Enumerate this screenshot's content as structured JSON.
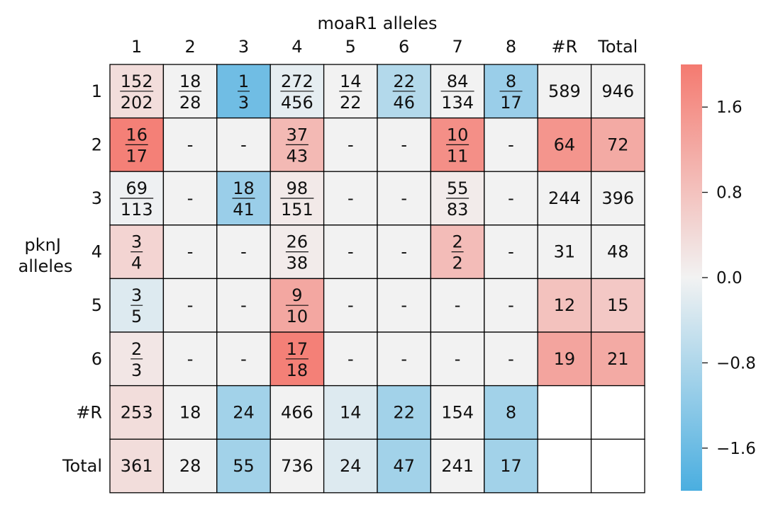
{
  "chart_data": {
    "type": "heatmap",
    "title": "moaR1 alleles",
    "ylabel": [
      "pknJ",
      "alleles"
    ],
    "columns": [
      "1",
      "2",
      "3",
      "4",
      "5",
      "6",
      "7",
      "8",
      "#R",
      "Total"
    ],
    "rows": [
      "1",
      "2",
      "3",
      "4",
      "5",
      "6",
      "#R",
      "Total"
    ],
    "cells": [
      [
        {
          "t": "frac",
          "num": "152",
          "den": "202",
          "v": 0.35
        },
        {
          "t": "frac",
          "num": "18",
          "den": "28",
          "v": 0.0
        },
        {
          "t": "frac",
          "num": "1",
          "den": "3",
          "v": -1.55
        },
        {
          "t": "frac",
          "num": "272",
          "den": "456",
          "v": -0.15
        },
        {
          "t": "frac",
          "num": "14",
          "den": "22",
          "v": 0.0
        },
        {
          "t": "frac",
          "num": "22",
          "den": "46",
          "v": -0.75
        },
        {
          "t": "frac",
          "num": "84",
          "den": "134",
          "v": 0.0
        },
        {
          "t": "frac",
          "num": "8",
          "den": "17",
          "v": -1.05
        },
        {
          "t": "num",
          "text": "589",
          "v": 0.0
        },
        {
          "t": "num",
          "text": "946",
          "v": 0.0
        }
      ],
      [
        {
          "t": "frac",
          "num": "16",
          "den": "17",
          "v": 1.9
        },
        {
          "t": "dash",
          "text": "-",
          "v": 0.0
        },
        {
          "t": "dash",
          "text": "-",
          "v": 0.0
        },
        {
          "t": "frac",
          "num": "37",
          "den": "43",
          "v": 0.95
        },
        {
          "t": "dash",
          "text": "-",
          "v": 0.0
        },
        {
          "t": "dash",
          "text": "-",
          "v": 0.0
        },
        {
          "t": "frac",
          "num": "10",
          "den": "11",
          "v": 1.65
        },
        {
          "t": "dash",
          "text": "-",
          "v": 0.0
        },
        {
          "t": "num",
          "text": "64",
          "v": 1.55
        },
        {
          "t": "num",
          "text": "72",
          "v": 1.2
        }
      ],
      [
        {
          "t": "frac",
          "num": "69",
          "den": "113",
          "v": -0.05
        },
        {
          "t": "dash",
          "text": "-",
          "v": 0.0
        },
        {
          "t": "frac",
          "num": "18",
          "den": "41",
          "v": -1.05
        },
        {
          "t": "frac",
          "num": "98",
          "den": "151",
          "v": 0.15
        },
        {
          "t": "dash",
          "text": "-",
          "v": 0.0
        },
        {
          "t": "dash",
          "text": "-",
          "v": 0.0
        },
        {
          "t": "frac",
          "num": "55",
          "den": "83",
          "v": 0.12
        },
        {
          "t": "dash",
          "text": "-",
          "v": 0.0
        },
        {
          "t": "num",
          "text": "244",
          "v": 0.0
        },
        {
          "t": "num",
          "text": "396",
          "v": 0.0
        }
      ],
      [
        {
          "t": "frac",
          "num": "3",
          "den": "4",
          "v": 0.5
        },
        {
          "t": "dash",
          "text": "-",
          "v": 0.0
        },
        {
          "t": "dash",
          "text": "-",
          "v": 0.0
        },
        {
          "t": "frac",
          "num": "26",
          "den": "38",
          "v": 0.12
        },
        {
          "t": "dash",
          "text": "-",
          "v": 0.0
        },
        {
          "t": "dash",
          "text": "-",
          "v": 0.0
        },
        {
          "t": "frac",
          "num": "2",
          "den": "2",
          "v": 0.9
        },
        {
          "t": "dash",
          "text": "-",
          "v": 0.0
        },
        {
          "t": "num",
          "text": "31",
          "v": 0.0
        },
        {
          "t": "num",
          "text": "48",
          "v": 0.0
        }
      ],
      [
        {
          "t": "frac",
          "num": "3",
          "den": "5",
          "v": -0.25
        },
        {
          "t": "dash",
          "text": "-",
          "v": 0.0
        },
        {
          "t": "dash",
          "text": "-",
          "v": 0.0
        },
        {
          "t": "frac",
          "num": "9",
          "den": "10",
          "v": 1.25
        },
        {
          "t": "dash",
          "text": "-",
          "v": 0.0
        },
        {
          "t": "dash",
          "text": "-",
          "v": 0.0
        },
        {
          "t": "dash",
          "text": "-",
          "v": 0.0
        },
        {
          "t": "dash",
          "text": "-",
          "v": 0.0
        },
        {
          "t": "num",
          "text": "12",
          "v": 0.8
        },
        {
          "t": "num",
          "text": "15",
          "v": 0.7
        }
      ],
      [
        {
          "t": "frac",
          "num": "2",
          "den": "3",
          "v": 0.2
        },
        {
          "t": "dash",
          "text": "-",
          "v": 0.0
        },
        {
          "t": "dash",
          "text": "-",
          "v": 0.0
        },
        {
          "t": "frac",
          "num": "17",
          "den": "18",
          "v": 1.9
        },
        {
          "t": "dash",
          "text": "-",
          "v": 0.0
        },
        {
          "t": "dash",
          "text": "-",
          "v": 0.0
        },
        {
          "t": "dash",
          "text": "-",
          "v": 0.0
        },
        {
          "t": "dash",
          "text": "-",
          "v": 0.0
        },
        {
          "t": "num",
          "text": "19",
          "v": 1.3
        },
        {
          "t": "num",
          "text": "21",
          "v": 1.2
        }
      ],
      [
        {
          "t": "num",
          "text": "253",
          "v": 0.35
        },
        {
          "t": "num",
          "text": "18",
          "v": 0.0
        },
        {
          "t": "num",
          "text": "24",
          "v": -0.95
        },
        {
          "t": "num",
          "text": "466",
          "v": 0.0
        },
        {
          "t": "num",
          "text": "14",
          "v": -0.25
        },
        {
          "t": "num",
          "text": "22",
          "v": -0.95
        },
        {
          "t": "num",
          "text": "154",
          "v": 0.0
        },
        {
          "t": "num",
          "text": "8",
          "v": -0.95
        },
        {
          "t": "blank",
          "v": null
        },
        {
          "t": "blank",
          "v": null
        }
      ],
      [
        {
          "t": "num",
          "text": "361",
          "v": 0.35
        },
        {
          "t": "num",
          "text": "28",
          "v": 0.0
        },
        {
          "t": "num",
          "text": "55",
          "v": -0.95
        },
        {
          "t": "num",
          "text": "736",
          "v": 0.0
        },
        {
          "t": "num",
          "text": "24",
          "v": -0.25
        },
        {
          "t": "num",
          "text": "47",
          "v": -0.95
        },
        {
          "t": "num",
          "text": "241",
          "v": 0.0
        },
        {
          "t": "num",
          "text": "17",
          "v": -0.95
        },
        {
          "t": "blank",
          "v": null
        },
        {
          "t": "blank",
          "v": null
        }
      ]
    ],
    "colorbar": {
      "min": -2.0,
      "max": 2.0,
      "ticks": [
        {
          "value": 1.6,
          "label": "1.6"
        },
        {
          "value": 0.8,
          "label": "0.8"
        },
        {
          "value": 0.0,
          "label": "0.0"
        },
        {
          "value": -0.8,
          "label": "−0.8"
        },
        {
          "value": -1.6,
          "label": "−1.6"
        }
      ],
      "colors": {
        "low": "#4aaee0",
        "mid": "#f2f2f2",
        "high": "#f47a70"
      }
    },
    "blank_color": "#ffffff",
    "grid": true
  }
}
